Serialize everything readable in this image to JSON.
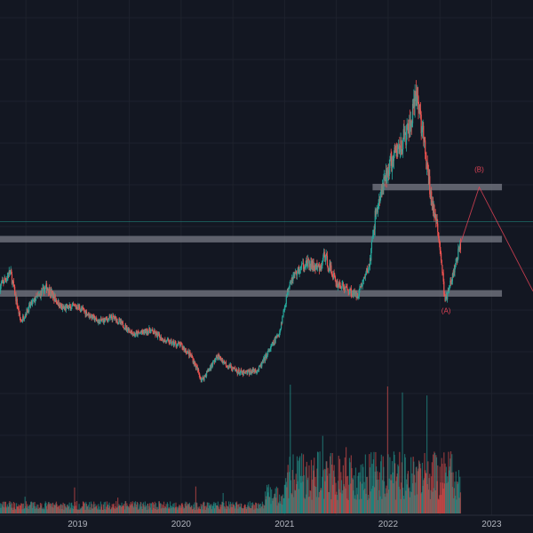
{
  "chart_data": {
    "type": "candlestick",
    "xlabel": "",
    "ylabel": "",
    "grid": true,
    "x_axis": {
      "range": [
        2018.25,
        2023.4
      ],
      "tick_labels": [
        "2019",
        "2020",
        "2021",
        "2022",
        "2023"
      ],
      "tick_values": [
        2019.0,
        2020.0,
        2021.0,
        2022.0,
        2023.0
      ]
    },
    "y_axis": {
      "range": [
        0,
        100
      ],
      "labels_visible": false
    },
    "colors": {
      "background": "#131722",
      "grid": "#1e222d",
      "up": "#26a69a",
      "down": "#ef5350",
      "zone": "#787b86",
      "annotation": "#e04356",
      "current_price_line": "#26a69a"
    },
    "price_path": [
      {
        "x": 2018.25,
        "y": 54
      },
      {
        "x": 2018.35,
        "y": 61
      },
      {
        "x": 2018.45,
        "y": 38
      },
      {
        "x": 2018.55,
        "y": 46
      },
      {
        "x": 2018.7,
        "y": 54
      },
      {
        "x": 2018.85,
        "y": 44
      },
      {
        "x": 2019.0,
        "y": 45
      },
      {
        "x": 2019.2,
        "y": 38
      },
      {
        "x": 2019.35,
        "y": 40
      },
      {
        "x": 2019.55,
        "y": 32
      },
      {
        "x": 2019.7,
        "y": 34
      },
      {
        "x": 2019.85,
        "y": 29
      },
      {
        "x": 2020.0,
        "y": 27
      },
      {
        "x": 2020.1,
        "y": 22
      },
      {
        "x": 2020.2,
        "y": 11
      },
      {
        "x": 2020.35,
        "y": 22
      },
      {
        "x": 2020.5,
        "y": 16
      },
      {
        "x": 2020.6,
        "y": 14
      },
      {
        "x": 2020.75,
        "y": 16
      },
      {
        "x": 2020.95,
        "y": 33
      },
      {
        "x": 2021.05,
        "y": 57
      },
      {
        "x": 2021.2,
        "y": 65
      },
      {
        "x": 2021.35,
        "y": 62
      },
      {
        "x": 2021.38,
        "y": 69
      },
      {
        "x": 2021.5,
        "y": 56
      },
      {
        "x": 2021.7,
        "y": 50
      },
      {
        "x": 2021.82,
        "y": 64
      },
      {
        "x": 2021.88,
        "y": 88
      },
      {
        "x": 2022.0,
        "y": 108
      },
      {
        "x": 2022.1,
        "y": 118
      },
      {
        "x": 2022.2,
        "y": 126
      },
      {
        "x": 2022.28,
        "y": 142
      },
      {
        "x": 2022.32,
        "y": 130
      },
      {
        "x": 2022.4,
        "y": 100
      },
      {
        "x": 2022.5,
        "y": 74
      },
      {
        "x": 2022.55,
        "y": 47
      },
      {
        "x": 2022.62,
        "y": 58
      },
      {
        "x": 2022.7,
        "y": 74
      }
    ],
    "zones": [
      {
        "label": "",
        "y_low": 49.5,
        "y_high": 52.5,
        "x_start": 2018.25,
        "x_end": 2023.1
      },
      {
        "label": "",
        "y_low": 74.5,
        "y_high": 77.5,
        "x_start": 2018.25,
        "x_end": 2023.1
      },
      {
        "label": "",
        "y_low": 98.5,
        "y_high": 101.5,
        "x_start": 2021.85,
        "x_end": 2023.1
      }
    ],
    "current_price_line": {
      "y": 84
    },
    "wave_path": [
      {
        "x": 2022.7,
        "y": 74
      },
      {
        "x": 2022.88,
        "y": 100
      },
      {
        "x": 2023.4,
        "y": 52
      }
    ],
    "wave_labels": [
      {
        "text": "(A)",
        "x": 2022.56,
        "y": 42
      },
      {
        "text": "(B)",
        "x": 2022.88,
        "y": 107
      }
    ],
    "volume_visible": true
  }
}
